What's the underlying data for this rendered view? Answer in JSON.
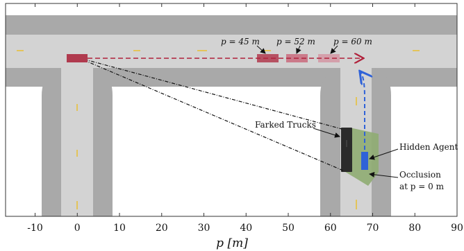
{
  "diagram": {
    "x_axis": {
      "label": "p [m]",
      "ticks": [
        -10,
        0,
        10,
        20,
        30,
        40,
        50,
        60,
        70,
        80,
        90
      ],
      "range": [
        -17,
        90
      ]
    },
    "annotations": {
      "parked_trucks": "Farked Trucks",
      "hidden_agent": "Hidden Agent",
      "occlusion_line1": "Occlusion",
      "occlusion_line2": "at p = 0 m"
    },
    "ego_positions": [
      {
        "label": "p = 45 m",
        "p": 45
      },
      {
        "label": "p = 52 m",
        "p": 52
      },
      {
        "label": "p = 60 m",
        "p": 60
      }
    ],
    "colors": {
      "road": "#d3d3d3",
      "curb": "#a9a9a9",
      "lane_marking": "#e3c45a",
      "ego_vehicle": "#b03a4e",
      "trucks": "#2b2b2b",
      "hidden_agent": "#2f62d8",
      "occlusion": "#8fac72",
      "trajectory": "#b0203a"
    },
    "icons": {
      "ego_vehicle": "car-rectangle",
      "hidden_agent": "car-rectangle",
      "trucks": "truck-rectangle"
    }
  }
}
